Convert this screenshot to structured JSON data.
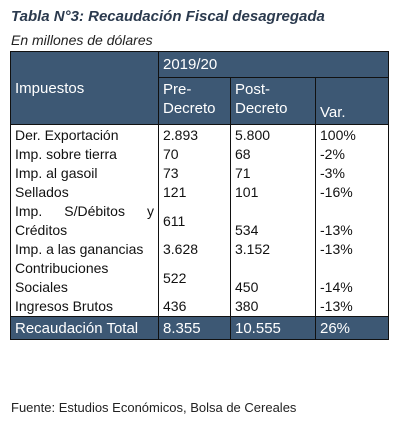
{
  "title": "Tabla N°3: Recaudación Fiscal desagregada",
  "subtitle": "En millones de dólares",
  "table": {
    "header": {
      "impuestos": "Impuestos",
      "period": "2019/20",
      "pre_line1": "Pre-",
      "pre_line2": "Decreto",
      "post_line1": "Post-",
      "post_line2": "Decreto",
      "var": "Var."
    },
    "rows": [
      {
        "name": "Der. Exportación",
        "pre": "2.893",
        "post": "5.800",
        "var": "100%"
      },
      {
        "name": "Imp. sobre tierra",
        "pre": "70",
        "post": "68",
        "var": "-2%"
      },
      {
        "name": "Imp. al gasoil",
        "pre": "73",
        "post": "71",
        "var": "-3%"
      },
      {
        "name": "Sellados",
        "pre": "121",
        "post": "101",
        "var": "-16%"
      },
      {
        "name": "Imp. S/Débitos y Créditos",
        "pre": "611",
        "post": "534",
        "var": "-13%"
      },
      {
        "name": "Imp. a las ganancias",
        "pre": "3.628",
        "post": "3.152",
        "var": "-13%"
      },
      {
        "name": "Contribuciones Sociales",
        "pre": "522",
        "post": "450",
        "var": "-14%"
      },
      {
        "name": "Ingresos Brutos",
        "pre": "436",
        "post": "380",
        "var": "-13%"
      }
    ],
    "total": {
      "label": "Recaudación Total",
      "pre": "8.355",
      "post": "10.555",
      "var": "26%"
    }
  },
  "source": "Fuente: Estudios Económicos, Bolsa de Cereales"
}
